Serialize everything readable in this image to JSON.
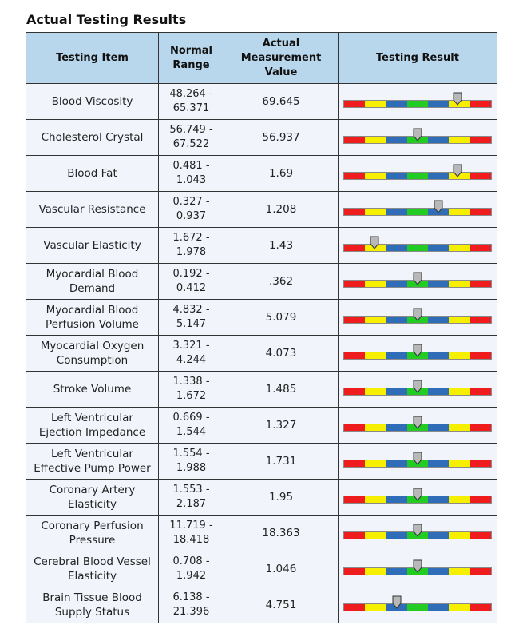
{
  "title": "Actual Testing Results",
  "headers": {
    "item": "Testing Item",
    "range": "Normal Range",
    "value": "Actual Measurement Value",
    "result": "Testing Result"
  },
  "colors": {
    "bar_segments": [
      "#ee1c1c",
      "#f6f000",
      "#2f6db8",
      "#22cc22",
      "#2f6db8",
      "#f6f000",
      "#ee1c1c"
    ],
    "header_bg": "#b9d7ec",
    "cell_bg": "#f1f5fb"
  },
  "rows": [
    {
      "item": "Blood Viscosity",
      "range": "48.264 - 65.371",
      "value": "69.645",
      "marker": 0.77
    },
    {
      "item": "Cholesterol Crystal",
      "range": "56.749 - 67.522",
      "value": "56.937",
      "marker": 0.5
    },
    {
      "item": "Blood Fat",
      "range": "0.481 - 1.043",
      "value": "1.69",
      "marker": 0.77
    },
    {
      "item": "Vascular Resistance",
      "range": "0.327 - 0.937",
      "value": "1.208",
      "marker": 0.64
    },
    {
      "item": "Vascular Elasticity",
      "range": "1.672 - 1.978",
      "value": "1.43",
      "marker": 0.21
    },
    {
      "item": "Myocardial Blood Demand",
      "range": "0.192 - 0.412",
      "value": ".362",
      "marker": 0.5
    },
    {
      "item": "Myocardial Blood Perfusion Volume",
      "range": "4.832 - 5.147",
      "value": "5.079",
      "marker": 0.5
    },
    {
      "item": "Myocardial Oxygen Consumption",
      "range": "3.321 - 4.244",
      "value": "4.073",
      "marker": 0.5
    },
    {
      "item": "Stroke Volume",
      "range": "1.338 - 1.672",
      "value": "1.485",
      "marker": 0.5
    },
    {
      "item": "Left Ventricular Ejection Impedance",
      "range": "0.669 - 1.544",
      "value": "1.327",
      "marker": 0.5
    },
    {
      "item": "Left Ventricular Effective Pump Power",
      "range": "1.554 - 1.988",
      "value": "1.731",
      "marker": 0.5
    },
    {
      "item": "Coronary Artery Elasticity",
      "range": "1.553 - 2.187",
      "value": "1.95",
      "marker": 0.5
    },
    {
      "item": "Coronary Perfusion Pressure",
      "range": "11.719 - 18.418",
      "value": "18.363",
      "marker": 0.5
    },
    {
      "item": "Cerebral Blood Vessel Elasticity",
      "range": "0.708 - 1.942",
      "value": "1.046",
      "marker": 0.5
    },
    {
      "item": "Brain Tissue Blood Supply Status",
      "range": "6.138 - 21.396",
      "value": "4.751",
      "marker": 0.36
    }
  ]
}
